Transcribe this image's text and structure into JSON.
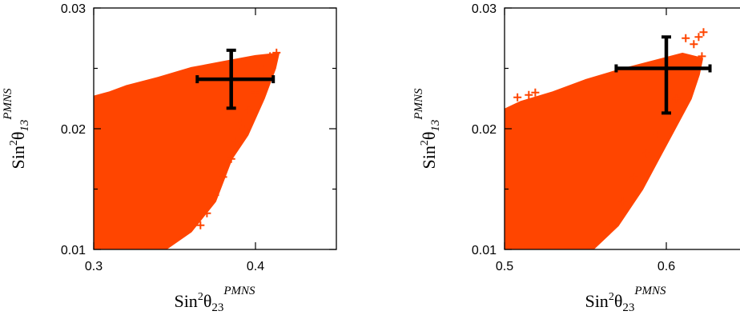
{
  "colors": {
    "points": "#ff4500",
    "errorbar": "#000000",
    "frame": "#000000"
  },
  "chart_data": [
    {
      "type": "scatter",
      "marker": "plus",
      "xlim": [
        0.3,
        0.45
      ],
      "ylim": [
        0.01,
        0.03
      ],
      "xticks": [
        0.3,
        0.4
      ],
      "yticks": [
        0.01,
        0.02,
        0.03
      ],
      "xtick_labels": [
        "0.3",
        "0.4"
      ],
      "ytick_labels": [
        "0.01",
        "0.02",
        "0.03"
      ],
      "xlabel": {
        "base": "Sin",
        "sup1": "2",
        "greek": "θ",
        "sub": "23",
        "sup2": "PMNS"
      },
      "ylabel": {
        "base": "Sin",
        "sup1": "2",
        "greek": "θ",
        "sub": "13",
        "sup2": "PMNS"
      },
      "region_outline": [
        [
          0.298,
          0.0101
        ],
        [
          0.33,
          0.01
        ],
        [
          0.345,
          0.0101
        ],
        [
          0.36,
          0.0115
        ],
        [
          0.375,
          0.014
        ],
        [
          0.385,
          0.0175
        ],
        [
          0.395,
          0.0195
        ],
        [
          0.405,
          0.0225
        ],
        [
          0.412,
          0.025
        ],
        [
          0.414,
          0.0262
        ],
        [
          0.4,
          0.026
        ],
        [
          0.38,
          0.0255
        ],
        [
          0.36,
          0.025
        ],
        [
          0.34,
          0.0242
        ],
        [
          0.32,
          0.0235
        ],
        [
          0.31,
          0.023
        ],
        [
          0.299,
          0.0226
        ]
      ],
      "scattered_points": [
        [
          0.413,
          0.0263
        ],
        [
          0.409,
          0.026
        ],
        [
          0.405,
          0.025
        ],
        [
          0.4,
          0.023
        ],
        [
          0.396,
          0.0215
        ],
        [
          0.393,
          0.02
        ],
        [
          0.388,
          0.019
        ],
        [
          0.385,
          0.0175
        ],
        [
          0.38,
          0.016
        ],
        [
          0.375,
          0.0145
        ],
        [
          0.37,
          0.013
        ],
        [
          0.366,
          0.012
        ],
        [
          0.405,
          0.0243
        ],
        [
          0.392,
          0.0205
        ]
      ],
      "reference_point": {
        "x": 0.385,
        "y": 0.0241,
        "x_err": [
          0.364,
          0.411
        ],
        "y_err": [
          0.0217,
          0.0265
        ]
      }
    },
    {
      "type": "scatter",
      "marker": "plus",
      "xlim": [
        0.5,
        0.65
      ],
      "ylim": [
        0.01,
        0.03
      ],
      "xticks": [
        0.5,
        0.6
      ],
      "yticks": [
        0.01,
        0.02,
        0.03
      ],
      "xtick_labels": [
        "0.5",
        "0.6"
      ],
      "ytick_labels": [
        "0.01",
        "0.02",
        "0.03"
      ],
      "xlabel": {
        "base": "Sin",
        "sup1": "2",
        "greek": "θ",
        "sub": "23",
        "sup2": "PMNS"
      },
      "ylabel": {
        "base": "Sin",
        "sup1": "2",
        "greek": "θ",
        "sub": "13",
        "sup2": "PMNS"
      },
      "region_outline": [
        [
          0.498,
          0.0101
        ],
        [
          0.53,
          0.01
        ],
        [
          0.555,
          0.0101
        ],
        [
          0.57,
          0.012
        ],
        [
          0.585,
          0.015
        ],
        [
          0.595,
          0.0175
        ],
        [
          0.605,
          0.02
        ],
        [
          0.615,
          0.0225
        ],
        [
          0.62,
          0.0245
        ],
        [
          0.622,
          0.0258
        ],
        [
          0.61,
          0.0262
        ],
        [
          0.59,
          0.0255
        ],
        [
          0.57,
          0.0248
        ],
        [
          0.55,
          0.024
        ],
        [
          0.53,
          0.023
        ],
        [
          0.51,
          0.0222
        ],
        [
          0.499,
          0.0215
        ]
      ],
      "scattered_points": [
        [
          0.623,
          0.028
        ],
        [
          0.62,
          0.0276
        ],
        [
          0.617,
          0.027
        ],
        [
          0.612,
          0.0275
        ],
        [
          0.622,
          0.026
        ],
        [
          0.615,
          0.024
        ],
        [
          0.606,
          0.0225
        ],
        [
          0.6,
          0.021
        ],
        [
          0.595,
          0.0195
        ],
        [
          0.588,
          0.018
        ],
        [
          0.58,
          0.016
        ],
        [
          0.573,
          0.014
        ],
        [
          0.567,
          0.012
        ],
        [
          0.515,
          0.0228
        ],
        [
          0.519,
          0.023
        ],
        [
          0.508,
          0.0226
        ]
      ],
      "reference_point": {
        "x": 0.6,
        "y": 0.025,
        "x_err": [
          0.569,
          0.627
        ],
        "y_err": [
          0.0213,
          0.0276
        ]
      }
    }
  ]
}
